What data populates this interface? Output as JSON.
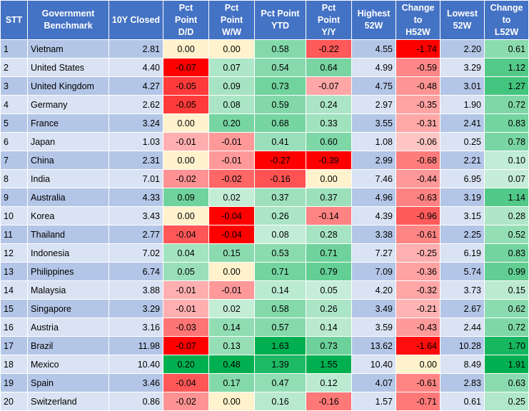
{
  "table": {
    "headers": [
      "STT",
      "Government\nBenchmark",
      "10Y Closed",
      "Pct\nPoint\nD/D",
      "Pct\nPoint\nW/W",
      "Pct Point\nYTD",
      "Pct\nPoint\nY/Y",
      "Highest\n52W",
      "Change\nto\nH52W",
      "Lowest\n52W",
      "Change\nto\nL52W"
    ],
    "rows": [
      {
        "stt": "1",
        "country": "Vietnam",
        "closed": "2.81",
        "dd": "0.00",
        "ww": "0.00",
        "ytd": "0.58",
        "yy": "-0.22",
        "high": "4.55",
        "ch_high": "-1.74",
        "low": "2.20",
        "ch_low": "0.61"
      },
      {
        "stt": "2",
        "country": "United States",
        "closed": "4.40",
        "dd": "-0.07",
        "ww": "0.07",
        "ytd": "0.54",
        "yy": "0.64",
        "high": "4.99",
        "ch_high": "-0.59",
        "low": "3.29",
        "ch_low": "1.12"
      },
      {
        "stt": "3",
        "country": "United Kingdom",
        "closed": "4.27",
        "dd": "-0.05",
        "ww": "0.09",
        "ytd": "0.73",
        "yy": "-0.07",
        "high": "4.75",
        "ch_high": "-0.48",
        "low": "3.01",
        "ch_low": "1.27"
      },
      {
        "stt": "4",
        "country": "Germany",
        "closed": "2.62",
        "dd": "-0.05",
        "ww": "0.08",
        "ytd": "0.59",
        "yy": "0.24",
        "high": "2.97",
        "ch_high": "-0.35",
        "low": "1.90",
        "ch_low": "0.72"
      },
      {
        "stt": "5",
        "country": "France",
        "closed": "3.24",
        "dd": "0.00",
        "ww": "0.20",
        "ytd": "0.68",
        "yy": "0.33",
        "high": "3.55",
        "ch_high": "-0.31",
        "low": "2.41",
        "ch_low": "0.83"
      },
      {
        "stt": "6",
        "country": "Japan",
        "closed": "1.03",
        "dd": "-0.01",
        "ww": "-0.01",
        "ytd": "0.41",
        "yy": "0.60",
        "high": "1.08",
        "ch_high": "-0.06",
        "low": "0.25",
        "ch_low": "0.78"
      },
      {
        "stt": "7",
        "country": "China",
        "closed": "2.31",
        "dd": "0.00",
        "ww": "-0.01",
        "ytd": "-0.27",
        "yy": "-0.39",
        "high": "2.99",
        "ch_high": "-0.68",
        "low": "2.21",
        "ch_low": "0.10"
      },
      {
        "stt": "8",
        "country": "India",
        "closed": "7.01",
        "dd": "-0.02",
        "ww": "-0.02",
        "ytd": "-0.16",
        "yy": "0.00",
        "high": "7.46",
        "ch_high": "-0.44",
        "low": "6.95",
        "ch_low": "0.07"
      },
      {
        "stt": "9",
        "country": "Australia",
        "closed": "4.33",
        "dd": "0.09",
        "ww": "0.02",
        "ytd": "0.37",
        "yy": "0.37",
        "high": "4.96",
        "ch_high": "-0.63",
        "low": "3.19",
        "ch_low": "1.14"
      },
      {
        "stt": "10",
        "country": "Korea",
        "closed": "3.43",
        "dd": "0.00",
        "ww": "-0.04",
        "ytd": "0.26",
        "yy": "-0.14",
        "high": "4.39",
        "ch_high": "-0.96",
        "low": "3.15",
        "ch_low": "0.28"
      },
      {
        "stt": "11",
        "country": "Thailand",
        "closed": "2.77",
        "dd": "-0.04",
        "ww": "-0.04",
        "ytd": "0.08",
        "yy": "0.28",
        "high": "3.38",
        "ch_high": "-0.61",
        "low": "2.25",
        "ch_low": "0.52"
      },
      {
        "stt": "12",
        "country": "Indonesia",
        "closed": "7.02",
        "dd": "0.04",
        "ww": "0.15",
        "ytd": "0.53",
        "yy": "0.71",
        "high": "7.27",
        "ch_high": "-0.25",
        "low": "6.19",
        "ch_low": "0.83"
      },
      {
        "stt": "13",
        "country": "Philippines",
        "closed": "6.74",
        "dd": "0.05",
        "ww": "0.00",
        "ytd": "0.71",
        "yy": "0.79",
        "high": "7.09",
        "ch_high": "-0.36",
        "low": "5.74",
        "ch_low": "0.99"
      },
      {
        "stt": "14",
        "country": "Malaysia",
        "closed": "3.88",
        "dd": "-0.01",
        "ww": "-0.01",
        "ytd": "0.14",
        "yy": "0.05",
        "high": "4.20",
        "ch_high": "-0.32",
        "low": "3.73",
        "ch_low": "0.15"
      },
      {
        "stt": "15",
        "country": "Singapore",
        "closed": "3.29",
        "dd": "-0.01",
        "ww": "0.02",
        "ytd": "0.58",
        "yy": "0.26",
        "high": "3.49",
        "ch_high": "-0.21",
        "low": "2.67",
        "ch_low": "0.62"
      },
      {
        "stt": "16",
        "country": "Austria",
        "closed": "3.16",
        "dd": "-0.03",
        "ww": "0.14",
        "ytd": "0.57",
        "yy": "0.14",
        "high": "3.59",
        "ch_high": "-0.43",
        "low": "2.44",
        "ch_low": "0.72"
      },
      {
        "stt": "17",
        "country": "Brazil",
        "closed": "11.98",
        "dd": "-0.07",
        "ww": "0.13",
        "ytd": "1.63",
        "yy": "0.73",
        "high": "13.62",
        "ch_high": "-1.64",
        "low": "10.28",
        "ch_low": "1.70"
      },
      {
        "stt": "18",
        "country": "Mexico",
        "closed": "10.40",
        "dd": "0.20",
        "ww": "0.48",
        "ytd": "1.39",
        "yy": "1.55",
        "high": "10.40",
        "ch_high": "0.00",
        "low": "8.49",
        "ch_low": "1.91"
      },
      {
        "stt": "19",
        "country": "Spain",
        "closed": "3.46",
        "dd": "-0.04",
        "ww": "0.17",
        "ytd": "0.47",
        "yy": "0.12",
        "high": "4.07",
        "ch_high": "-0.61",
        "low": "2.83",
        "ch_low": "0.63"
      },
      {
        "stt": "20",
        "country": "Switzerland",
        "closed": "0.86",
        "dd": "-0.02",
        "ww": "0.00",
        "ytd": "0.16",
        "yy": "-0.16",
        "high": "1.57",
        "ch_high": "-0.71",
        "low": "0.61",
        "ch_low": "0.25"
      }
    ]
  }
}
